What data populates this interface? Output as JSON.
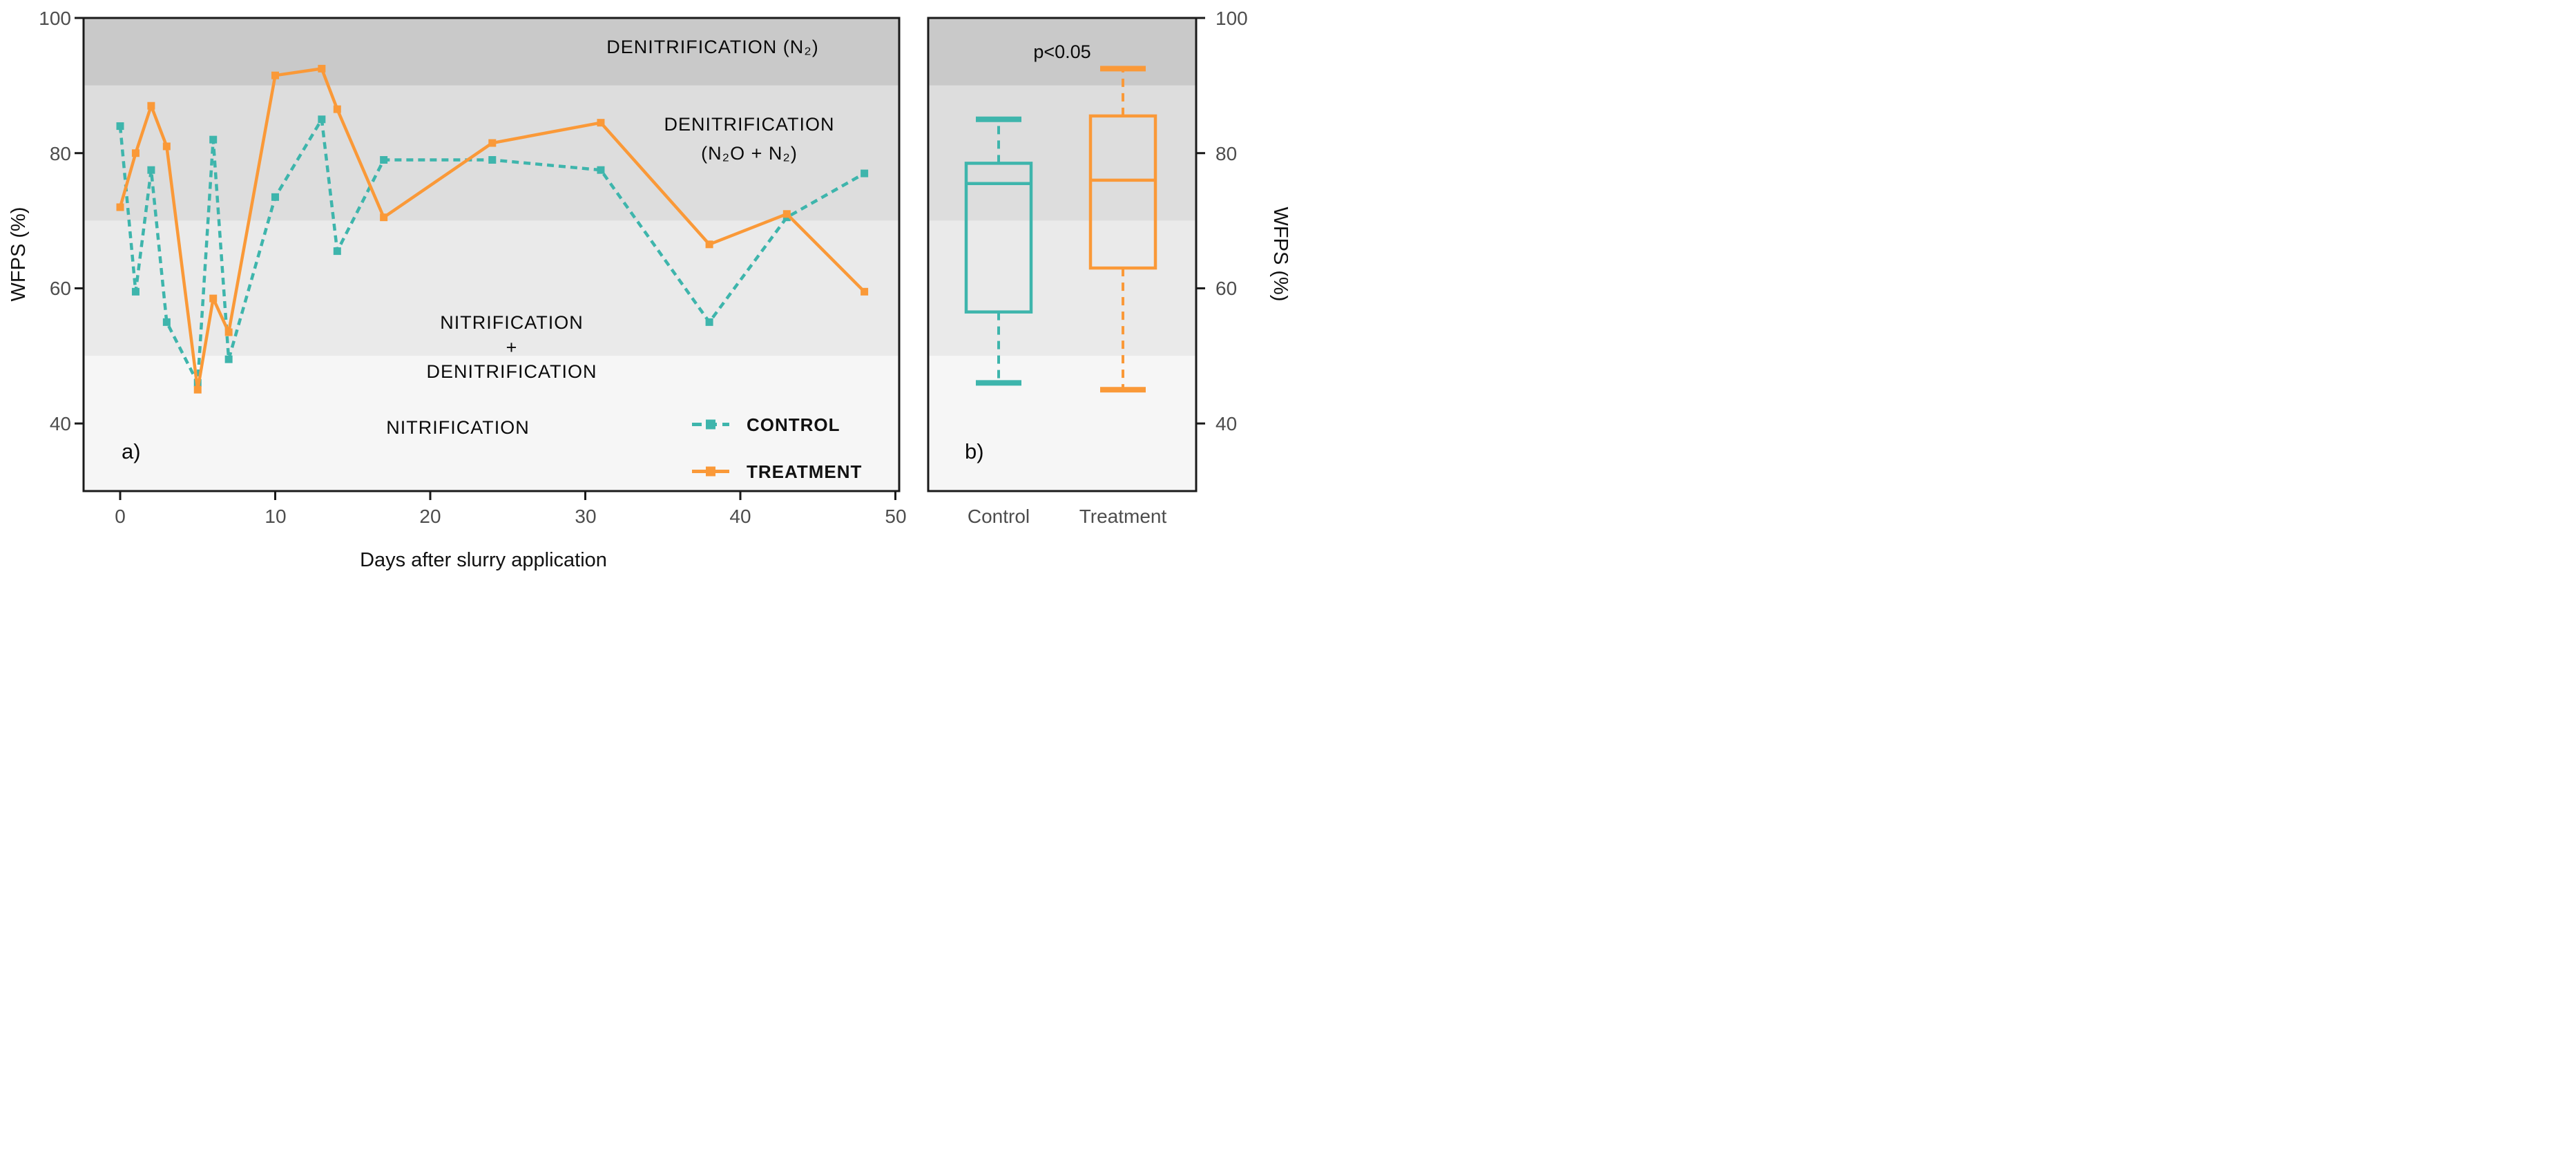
{
  "panels": {
    "a_label": "a)",
    "b_label": "b)"
  },
  "colors": {
    "control": "#3eb5ac",
    "treatment": "#fa9938",
    "zone_90_100": "#c9c9c9",
    "zone_70_90": "#dddddd",
    "zone_50_70": "#eaeaea",
    "zone_30_50": "#f6f6f6",
    "axis": "#1a1a1a"
  },
  "chart_data": [
    {
      "type": "line",
      "panel": "a",
      "xlabel": "Days after slurry application",
      "ylabel": "WFPS (%)",
      "ylim": [
        30,
        100
      ],
      "yticks": [
        40,
        60,
        80,
        100
      ],
      "xticks": [
        0,
        10,
        20,
        30,
        40,
        50
      ],
      "x": [
        0,
        1,
        2,
        3,
        5,
        6,
        7,
        10,
        13,
        14,
        17,
        24,
        31,
        38,
        43,
        48
      ],
      "series": [
        {
          "name": "CONTROL",
          "color": "#3eb5ac",
          "line_style": "dashed",
          "marker": "square",
          "values": [
            84,
            59.5,
            77.5,
            55,
            46,
            82,
            49.5,
            73.5,
            85,
            65.5,
            79,
            79,
            77.5,
            55,
            70.5,
            77
          ]
        },
        {
          "name": "TREATMENT",
          "color": "#fa9938",
          "line_style": "solid",
          "marker": "square",
          "values": [
            72,
            80,
            87,
            81,
            45,
            58.5,
            53.5,
            91.5,
            92.5,
            86.5,
            70.5,
            81.5,
            84.5,
            66.5,
            71,
            59.5
          ]
        }
      ],
      "zones": [
        {
          "from": 90,
          "to": 100,
          "color": "#c9c9c9",
          "label_lines": [
            "DENITRIFICATION (N₂)"
          ]
        },
        {
          "from": 70,
          "to": 90,
          "color": "#dddddd",
          "label_lines": [
            "DENITRIFICATION",
            "(N₂O + N₂)"
          ]
        },
        {
          "from": 50,
          "to": 70,
          "color": "#eaeaea",
          "label_lines": [
            "NITRIFICATION",
            "+",
            "DENITRIFICATION"
          ]
        },
        {
          "from": 30,
          "to": 50,
          "color": "#f6f6f6",
          "label_lines": [
            "NITRIFICATION"
          ]
        }
      ],
      "legend": {
        "position": "lower right",
        "entries": [
          "CONTROL",
          "TREATMENT"
        ]
      }
    },
    {
      "type": "boxplot",
      "panel": "b",
      "annotation": "p<0.05",
      "ylabel_right": "WFPS (%)",
      "ylim": [
        30,
        100
      ],
      "yticks": [
        40,
        60,
        80,
        100
      ],
      "categories": [
        "Control",
        "Treatment"
      ],
      "boxes": [
        {
          "name": "Control",
          "color": "#3eb5ac",
          "whisker_low": 46,
          "q1": 56.5,
          "median": 75.5,
          "q3": 78.5,
          "whisker_high": 85
        },
        {
          "name": "Treatment",
          "color": "#fa9938",
          "whisker_low": 45,
          "q1": 63,
          "median": 76,
          "q3": 85.5,
          "whisker_high": 92.5
        }
      ]
    }
  ]
}
